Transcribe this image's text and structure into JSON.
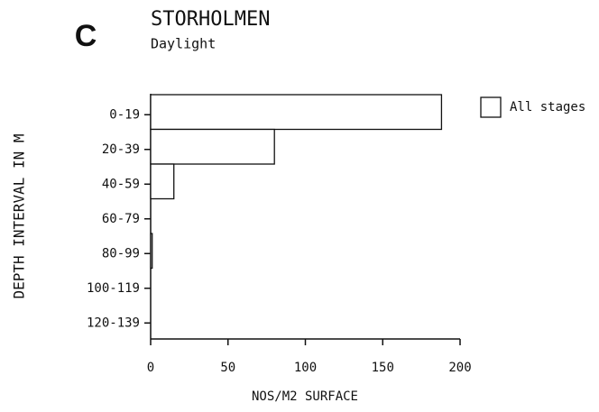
{
  "chart_data": {
    "type": "hbar",
    "panel": "C",
    "title": "STORHOLMEN",
    "subtitle": "Daylight",
    "xlabel": "NOS/M2 SURFACE",
    "ylabel": "DEPTH INTERVAL IN M",
    "categories": [
      "0-19",
      "20-39",
      "40-59",
      "60-79",
      "80-99",
      "100-119",
      "120-139"
    ],
    "series": [
      {
        "name": "All stages",
        "color": "#ffffff",
        "values": [
          188,
          80,
          15,
          0,
          1,
          0,
          0
        ]
      }
    ],
    "xlim": [
      0,
      200
    ],
    "xticks": [
      0,
      50,
      100,
      150,
      200
    ],
    "grid": false,
    "legend": "upper right"
  }
}
